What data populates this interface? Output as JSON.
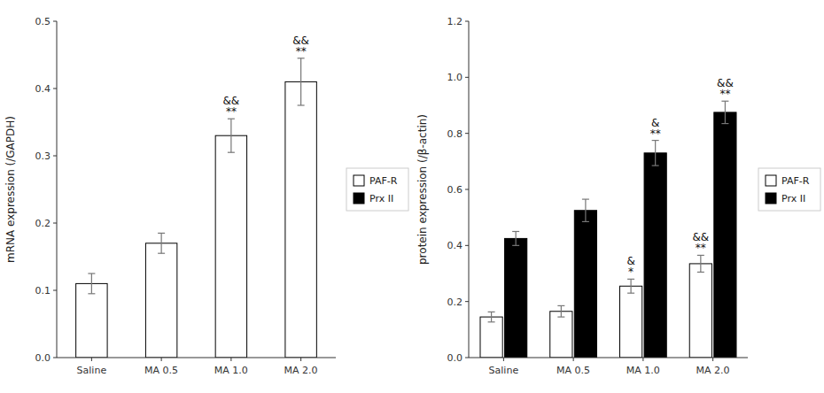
{
  "chart_data": [
    {
      "type": "bar",
      "y_label": "mRNA expression (/GAPDH)",
      "categories": [
        "Saline",
        "MA 0.5",
        "MA 1.0",
        "MA 2.0"
      ],
      "series": [
        {
          "name": "PAF-R",
          "color": "#ffffff",
          "values": [
            0.11,
            0.17,
            0.33,
            0.41
          ],
          "errors": [
            0.015,
            0.015,
            0.025,
            0.035
          ]
        },
        {
          "name": "Prx II",
          "color": "#000000",
          "values": [
            null,
            null,
            null,
            null
          ],
          "errors": [
            null,
            null,
            null,
            null
          ]
        }
      ],
      "ylim": [
        0,
        0.5
      ],
      "yticks": [
        {
          "value": 0,
          "label": "0.0"
        },
        0.1,
        0.2,
        0.3,
        0.4,
        0.5
      ],
      "grid": false,
      "legend": "right",
      "annotations": [
        {
          "text": "**",
          "category": "MA 1.0",
          "series": "PAF-R"
        },
        {
          "text": "&&",
          "category": "MA 1.0",
          "series": "PAF-R"
        },
        {
          "text": "**",
          "category": "MA 2.0",
          "series": "PAF-R"
        },
        {
          "text": "&&",
          "category": "MA 2.0",
          "series": "PAF-R"
        }
      ]
    },
    {
      "type": "bar",
      "y_label": "protein expression (/β-actin)",
      "categories": [
        "Saline",
        "MA 0.5",
        "MA 1.0",
        "MA 2.0"
      ],
      "series": [
        {
          "name": "PAF-R",
          "color": "#ffffff",
          "values": [
            0.145,
            0.165,
            0.255,
            0.335
          ],
          "errors": [
            0.018,
            0.02,
            0.025,
            0.03
          ]
        },
        {
          "name": "Prx II",
          "color": "#000000",
          "values": [
            0.425,
            0.525,
            0.73,
            0.875
          ],
          "errors": [
            0.025,
            0.04,
            0.045,
            0.04
          ]
        }
      ],
      "ylim": [
        0,
        1.2
      ],
      "yticks": [
        {
          "value": 0,
          "label": "0.0"
        },
        0.2,
        0.4,
        0.6,
        0.8,
        {
          "value": 1.0,
          "label": "1.0"
        },
        1.2
      ],
      "grid": false,
      "legend": "right",
      "annotations": [
        {
          "text": "*",
          "category": "MA 1.0",
          "series": "PAF-R"
        },
        {
          "text": "&",
          "category": "MA 1.0",
          "series": "PAF-R"
        },
        {
          "text": "**",
          "category": "MA 1.0",
          "series": "Prx II"
        },
        {
          "text": "&",
          "category": "MA 1.0",
          "series": "Prx II"
        },
        {
          "text": "**",
          "category": "MA 2.0",
          "series": "PAF-R"
        },
        {
          "text": "&&",
          "category": "MA 2.0",
          "series": "PAF-R"
        },
        {
          "text": "**",
          "category": "MA 2.0",
          "series": "Prx II"
        },
        {
          "text": "&&",
          "category": "MA 2.0",
          "series": "Prx II"
        }
      ]
    }
  ]
}
